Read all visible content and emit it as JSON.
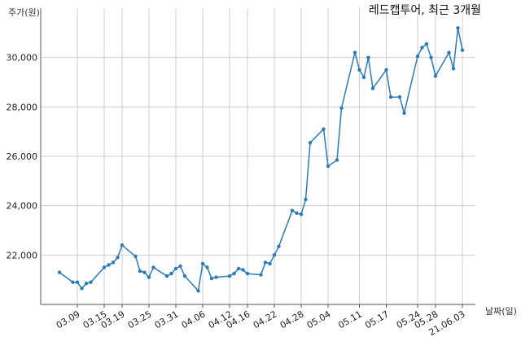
{
  "chart_data": {
    "type": "line",
    "title": "레드캡투어, 최근 3개월",
    "ylabel": "주가(원)",
    "xlabel": "날짜(일)",
    "ylim": [
      20000,
      32000
    ],
    "grid": true,
    "yticks": [
      22000,
      24000,
      26000,
      28000,
      30000
    ],
    "ytick_labels": [
      "22,000",
      "24,000",
      "26,000",
      "28,000",
      "30,000"
    ],
    "x": [
      "2021-03-05",
      "2021-03-08",
      "2021-03-09",
      "2021-03-10",
      "2021-03-11",
      "2021-03-12",
      "2021-03-15",
      "2021-03-16",
      "2021-03-17",
      "2021-03-18",
      "2021-03-19",
      "2021-03-22",
      "2021-03-23",
      "2021-03-24",
      "2021-03-25",
      "2021-03-26",
      "2021-03-29",
      "2021-03-30",
      "2021-03-31",
      "2021-04-01",
      "2021-04-02",
      "2021-04-05",
      "2021-04-06",
      "2021-04-07",
      "2021-04-08",
      "2021-04-09",
      "2021-04-12",
      "2021-04-13",
      "2021-04-14",
      "2021-04-15",
      "2021-04-16",
      "2021-04-19",
      "2021-04-20",
      "2021-04-21",
      "2021-04-22",
      "2021-04-23",
      "2021-04-26",
      "2021-04-27",
      "2021-04-28",
      "2021-04-29",
      "2021-04-30",
      "2021-05-03",
      "2021-05-04",
      "2021-05-06",
      "2021-05-07",
      "2021-05-10",
      "2021-05-11",
      "2021-05-12",
      "2021-05-13",
      "2021-05-14",
      "2021-05-17",
      "2021-05-18",
      "2021-05-20",
      "2021-05-21",
      "2021-05-24",
      "2021-05-25",
      "2021-05-26",
      "2021-05-27",
      "2021-05-28",
      "2021-05-31",
      "2021-06-01",
      "2021-06-02",
      "2021-06-03"
    ],
    "xtick_dates": [
      "2021-03-09",
      "2021-03-15",
      "2021-03-19",
      "2021-03-25",
      "2021-03-31",
      "2021-04-06",
      "2021-04-12",
      "2021-04-16",
      "2021-04-22",
      "2021-04-28",
      "2021-05-04",
      "2021-05-11",
      "2021-05-17",
      "2021-05-24",
      "2021-05-28",
      "2021-06-03"
    ],
    "xtick_labels": [
      "03.09",
      "03.15",
      "03.19",
      "03.25",
      "03.31",
      "04.06",
      "04.12",
      "04.16",
      "04.22",
      "04.28",
      "05.04",
      "05.11",
      "05.17",
      "05.24",
      "05.28",
      "21.06.03"
    ],
    "series": [
      {
        "values": [
          21300,
          20900,
          20900,
          20650,
          20850,
          20900,
          21500,
          21600,
          21700,
          21900,
          22400,
          21950,
          21350,
          21300,
          21100,
          21500,
          21150,
          21250,
          21450,
          21550,
          21150,
          20550,
          21650,
          21500,
          21050,
          21100,
          21150,
          21250,
          21450,
          21400,
          21250,
          21200,
          21700,
          21650,
          22000,
          22350,
          23800,
          23700,
          23650,
          24250,
          26550,
          27100,
          25600,
          25850,
          27950,
          30200,
          29500,
          29200,
          30000,
          28750,
          29500,
          28400,
          28400,
          27750,
          30050,
          30400,
          30550,
          30000,
          29250,
          30200,
          29550,
          31200,
          30300
        ]
      }
    ]
  },
  "colors": {
    "line": "#2b7bb9",
    "marker": "#2b7bb9",
    "grid": "#cfcfcf",
    "axis": "#555555"
  }
}
